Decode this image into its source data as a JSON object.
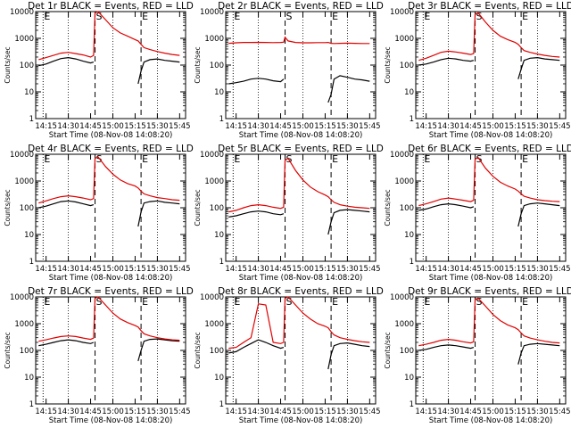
{
  "figure": {
    "type": "line",
    "grid": "3x3",
    "yscale": "log",
    "ylim": [
      1,
      10000
    ],
    "xlabel": "Start Time (08-Nov-08 14:08:20)",
    "ylabel": "Counts/sec",
    "x_tick_labels": [
      "14:15",
      "14:30",
      "14:45",
      "15:00",
      "15:15",
      "15:30",
      "15:45"
    ],
    "y_tick_labels": [
      "1",
      "10",
      "100",
      "1000",
      "10000"
    ],
    "series_colors": {
      "Events": "#000000",
      "LLD": "#e00000"
    },
    "vertical_markers": [
      {
        "label": "E",
        "time": "14:13",
        "style": "dotted"
      },
      {
        "label": "S",
        "time": "14:48",
        "style": "dashed"
      },
      {
        "label": "E",
        "time": "15:19",
        "style": "dashed"
      }
    ],
    "dotted_gridlines": [
      "14:30",
      "15:00",
      "15:30"
    ]
  },
  "chart_data": [
    {
      "type": "line",
      "title": "Det 1r BLACK = Events, RED = LLD",
      "xlabel": "Start Time (08-Nov-08 14:08:20)",
      "ylabel": "Counts/sec",
      "yscale": "log",
      "ylim": [
        1,
        10000
      ],
      "x": [
        "14:10",
        "14:15",
        "14:20",
        "14:25",
        "14:30",
        "14:35",
        "14:40",
        "14:45",
        "14:47",
        "14:48",
        "14:50",
        "14:55",
        "15:00",
        "15:05",
        "15:10",
        "15:15",
        "15:17",
        "15:19",
        "15:21",
        "15:25",
        "15:30",
        "15:35",
        "15:40",
        "15:45"
      ],
      "series": [
        {
          "name": "Events",
          "values": [
            95,
            110,
            140,
            175,
            190,
            170,
            140,
            120,
            130,
            null,
            null,
            null,
            null,
            null,
            null,
            null,
            20,
            60,
            130,
            160,
            170,
            150,
            140,
            130
          ]
        },
        {
          "name": "LLD",
          "values": [
            160,
            190,
            230,
            280,
            300,
            270,
            240,
            200,
            230,
            9000,
            10000,
            5000,
            2500,
            1600,
            1200,
            900,
            800,
            600,
            450,
            380,
            320,
            280,
            250,
            230
          ]
        }
      ]
    },
    {
      "type": "line",
      "title": "Det 2r BLACK = Events, RED = LLD",
      "xlabel": "Start Time (08-Nov-08 14:08:20)",
      "ylabel": "Counts/sec",
      "yscale": "log",
      "ylim": [
        1,
        10000
      ],
      "x": [
        "14:10",
        "14:15",
        "14:20",
        "14:25",
        "14:30",
        "14:35",
        "14:40",
        "14:45",
        "14:47",
        "14:48",
        "14:50",
        "14:55",
        "15:00",
        "15:05",
        "15:10",
        "15:15",
        "15:17",
        "15:19",
        "15:21",
        "15:25",
        "15:30",
        "15:35",
        "15:40",
        "15:45"
      ],
      "series": [
        {
          "name": "Events",
          "values": [
            20,
            22,
            25,
            30,
            32,
            30,
            26,
            24,
            30,
            null,
            null,
            null,
            null,
            null,
            null,
            null,
            4,
            8,
            30,
            40,
            35,
            30,
            28,
            25
          ]
        },
        {
          "name": "LLD",
          "values": [
            650,
            680,
            700,
            700,
            710,
            700,
            690,
            700,
            720,
            1100,
            800,
            700,
            680,
            680,
            690,
            690,
            700,
            650,
            640,
            650,
            660,
            650,
            640,
            640
          ]
        }
      ]
    },
    {
      "type": "line",
      "title": "Det 3r BLACK = Events, RED = LLD",
      "xlabel": "Start Time (08-Nov-08 14:08:20)",
      "ylabel": "Counts/sec",
      "yscale": "log",
      "ylim": [
        1,
        10000
      ],
      "x": [
        "14:10",
        "14:15",
        "14:20",
        "14:25",
        "14:30",
        "14:35",
        "14:40",
        "14:45",
        "14:47",
        "14:48",
        "14:50",
        "14:55",
        "15:00",
        "15:05",
        "15:10",
        "15:15",
        "15:17",
        "15:19",
        "15:21",
        "15:25",
        "15:30",
        "15:35",
        "15:40",
        "15:45"
      ],
      "series": [
        {
          "name": "Events",
          "values": [
            100,
            110,
            130,
            160,
            180,
            170,
            150,
            140,
            150,
            null,
            null,
            null,
            null,
            null,
            null,
            null,
            30,
            70,
            150,
            180,
            190,
            170,
            160,
            150
          ]
        },
        {
          "name": "LLD",
          "values": [
            150,
            180,
            230,
            300,
            330,
            310,
            280,
            250,
            270,
            8000,
            9000,
            4000,
            2000,
            1200,
            900,
            700,
            600,
            450,
            350,
            300,
            260,
            230,
            210,
            200
          ]
        }
      ]
    },
    {
      "type": "line",
      "title": "Det 4r BLACK = Events, RED = LLD",
      "xlabel": "Start Time (08-Nov-08 14:08:20)",
      "ylabel": "Counts/sec",
      "yscale": "log",
      "ylim": [
        1,
        10000
      ],
      "x": [
        "14:10",
        "14:15",
        "14:20",
        "14:25",
        "14:30",
        "14:35",
        "14:40",
        "14:45",
        "14:47",
        "14:48",
        "14:50",
        "14:55",
        "15:00",
        "15:05",
        "15:10",
        "15:15",
        "15:17",
        "15:19",
        "15:21",
        "15:25",
        "15:30",
        "15:35",
        "15:40",
        "15:45"
      ],
      "series": [
        {
          "name": "Events",
          "values": [
            100,
            115,
            140,
            170,
            180,
            165,
            140,
            120,
            130,
            null,
            null,
            null,
            null,
            null,
            null,
            null,
            20,
            70,
            150,
            170,
            180,
            160,
            150,
            140
          ]
        },
        {
          "name": "LLD",
          "values": [
            150,
            180,
            220,
            260,
            280,
            260,
            230,
            200,
            220,
            7000,
            8000,
            3500,
            1800,
            1100,
            800,
            650,
            550,
            420,
            330,
            280,
            240,
            220,
            200,
            190
          ]
        }
      ]
    },
    {
      "type": "line",
      "title": "Det 5r BLACK = Events, RED = LLD",
      "xlabel": "Start Time (08-Nov-08 14:08:20)",
      "ylabel": "Counts/sec",
      "yscale": "log",
      "ylim": [
        1,
        10000
      ],
      "x": [
        "14:10",
        "14:15",
        "14:20",
        "14:25",
        "14:30",
        "14:35",
        "14:40",
        "14:45",
        "14:47",
        "14:48",
        "14:50",
        "14:55",
        "15:00",
        "15:05",
        "15:10",
        "15:15",
        "15:17",
        "15:19",
        "15:21",
        "15:25",
        "15:30",
        "15:35",
        "15:40",
        "15:45"
      ],
      "series": [
        {
          "name": "Events",
          "values": [
            45,
            50,
            60,
            70,
            75,
            70,
            60,
            55,
            60,
            null,
            null,
            null,
            null,
            null,
            null,
            null,
            10,
            30,
            65,
            80,
            85,
            80,
            75,
            70
          ]
        },
        {
          "name": "LLD",
          "values": [
            70,
            80,
            100,
            120,
            130,
            120,
            105,
            95,
            105,
            6000,
            7000,
            2500,
            1100,
            600,
            400,
            300,
            260,
            200,
            160,
            130,
            115,
            105,
            100,
            95
          ]
        }
      ]
    },
    {
      "type": "line",
      "title": "Det 6r BLACK = Events, RED = LLD",
      "xlabel": "Start Time (08-Nov-08 14:08:20)",
      "ylabel": "Counts/sec",
      "yscale": "log",
      "ylim": [
        1,
        10000
      ],
      "x": [
        "14:10",
        "14:15",
        "14:20",
        "14:25",
        "14:30",
        "14:35",
        "14:40",
        "14:45",
        "14:47",
        "14:48",
        "14:50",
        "14:55",
        "15:00",
        "15:05",
        "15:10",
        "15:15",
        "15:17",
        "15:19",
        "15:21",
        "15:25",
        "15:30",
        "15:35",
        "15:40",
        "15:45"
      ],
      "series": [
        {
          "name": "Events",
          "values": [
            80,
            90,
            110,
            130,
            140,
            130,
            115,
            100,
            110,
            null,
            null,
            null,
            null,
            null,
            null,
            null,
            20,
            60,
            120,
            140,
            150,
            140,
            130,
            120
          ]
        },
        {
          "name": "LLD",
          "values": [
            120,
            140,
            170,
            210,
            230,
            210,
            190,
            170,
            190,
            6500,
            7500,
            3000,
            1500,
            900,
            650,
            500,
            420,
            330,
            270,
            230,
            200,
            185,
            175,
            170
          ]
        }
      ]
    },
    {
      "type": "line",
      "title": "Det 7r BLACK = Events, RED = LLD",
      "xlabel": "Start Time (08-Nov-08 14:08:20)",
      "ylabel": "Counts/sec",
      "yscale": "log",
      "ylim": [
        1,
        10000
      ],
      "x": [
        "14:10",
        "14:15",
        "14:20",
        "14:25",
        "14:30",
        "14:35",
        "14:40",
        "14:45",
        "14:47",
        "14:48",
        "14:50",
        "14:55",
        "15:00",
        "15:05",
        "15:10",
        "15:15",
        "15:17",
        "15:19",
        "15:21",
        "15:25",
        "15:30",
        "15:35",
        "15:40",
        "15:45"
      ],
      "series": [
        {
          "name": "Events",
          "values": [
            150,
            170,
            200,
            230,
            250,
            230,
            200,
            180,
            200,
            null,
            null,
            null,
            null,
            null,
            null,
            null,
            40,
            100,
            220,
            260,
            270,
            250,
            230,
            220
          ]
        },
        {
          "name": "LLD",
          "values": [
            220,
            250,
            290,
            330,
            350,
            330,
            290,
            260,
            290,
            9000,
            10000,
            5000,
            2500,
            1500,
            1100,
            850,
            750,
            550,
            420,
            350,
            300,
            270,
            250,
            240
          ]
        }
      ]
    },
    {
      "type": "line",
      "title": "Det 8r BLACK = Events, RED = LLD",
      "xlabel": "Start Time (08-Nov-08 14:08:20)",
      "ylabel": "Counts/sec",
      "yscale": "log",
      "ylim": [
        1,
        10000
      ],
      "x": [
        "14:10",
        "14:15",
        "14:20",
        "14:25",
        "14:30",
        "14:35",
        "14:40",
        "14:45",
        "14:47",
        "14:48",
        "14:50",
        "14:55",
        "15:00",
        "15:05",
        "15:10",
        "15:15",
        "15:17",
        "15:19",
        "15:21",
        "15:25",
        "15:30",
        "15:35",
        "15:40",
        "15:45"
      ],
      "series": [
        {
          "name": "Events",
          "values": [
            80,
            90,
            130,
            180,
            250,
            200,
            150,
            120,
            130,
            null,
            null,
            null,
            null,
            null,
            null,
            null,
            20,
            70,
            150,
            180,
            190,
            170,
            150,
            140
          ]
        },
        {
          "name": "LLD",
          "values": [
            120,
            130,
            200,
            300,
            5500,
            5000,
            200,
            180,
            200,
            9000,
            10000,
            5000,
            2500,
            1500,
            1000,
            800,
            700,
            500,
            380,
            300,
            260,
            230,
            210,
            200
          ]
        }
      ]
    },
    {
      "type": "line",
      "title": "Det 9r BLACK = Events, RED = LLD",
      "xlabel": "Start Time (08-Nov-08 14:08:20)",
      "ylabel": "Counts/sec",
      "yscale": "log",
      "ylim": [
        1,
        10000
      ],
      "x": [
        "14:10",
        "14:15",
        "14:20",
        "14:25",
        "14:30",
        "14:35",
        "14:40",
        "14:45",
        "14:47",
        "14:48",
        "14:50",
        "14:55",
        "15:00",
        "15:05",
        "15:10",
        "15:15",
        "15:17",
        "15:19",
        "15:21",
        "15:25",
        "15:30",
        "15:35",
        "15:40",
        "15:45"
      ],
      "series": [
        {
          "name": "Events",
          "values": [
            100,
            110,
            130,
            150,
            160,
            150,
            135,
            120,
            130,
            null,
            null,
            null,
            null,
            null,
            null,
            null,
            30,
            80,
            150,
            170,
            180,
            170,
            160,
            150
          ]
        },
        {
          "name": "LLD",
          "values": [
            150,
            170,
            200,
            240,
            260,
            240,
            210,
            190,
            210,
            8000,
            9000,
            4500,
            2200,
            1300,
            900,
            700,
            600,
            450,
            350,
            290,
            250,
            220,
            200,
            190
          ]
        }
      ]
    }
  ]
}
